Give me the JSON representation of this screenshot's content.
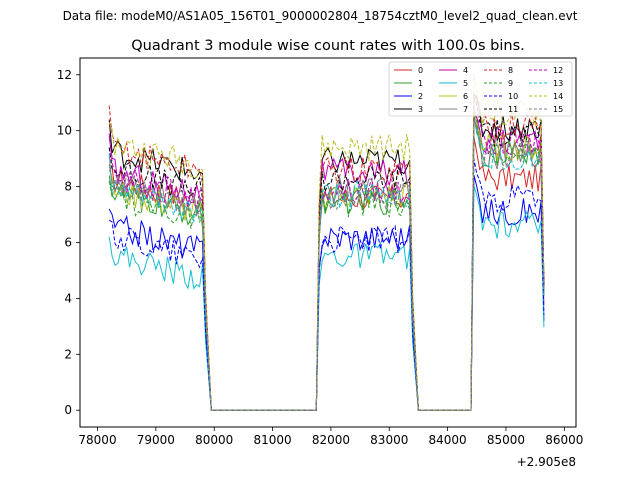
{
  "suptitle": "Data file: modeM0/AS1A05_156T01_9000002804_18754cztM0_level2_quad_clean.evt",
  "chart_data": {
    "type": "line",
    "title": "Quadrant 3 module wise count rates with 100.0s bins.",
    "xlabel": "",
    "ylabel": "",
    "x_offset_label": "+2.905e8",
    "xlim": [
      77700,
      86200
    ],
    "ylim": [
      -0.6,
      12.6
    ],
    "xticks": [
      78000,
      79000,
      80000,
      81000,
      82000,
      83000,
      84000,
      85000,
      86000
    ],
    "xtick_labels": [
      "78000",
      "79000",
      "80000",
      "81000",
      "82000",
      "83000",
      "84000",
      "85000",
      "86000"
    ],
    "yticks": [
      0,
      2,
      4,
      6,
      8,
      10,
      12
    ],
    "ytick_labels": [
      "0",
      "2",
      "4",
      "6",
      "8",
      "10",
      "12"
    ],
    "legend": {
      "placement": "top-right",
      "columns": 4
    },
    "segments": [
      {
        "start": 78200,
        "end": 79850,
        "active": true
      },
      {
        "start": 79950,
        "end": 81800,
        "active": false
      },
      {
        "start": 81800,
        "end": 83400,
        "active": true
      },
      {
        "start": 83500,
        "end": 84450,
        "active": false
      },
      {
        "start": 84450,
        "end": 85650,
        "active": true
      }
    ],
    "series": [
      {
        "name": "0",
        "color": "#d62728",
        "dash": "solid",
        "levels": [
          8.3,
          7.6,
          8.3
        ],
        "start_peak": 8.7
      },
      {
        "name": "1",
        "color": "#2ca02c",
        "dash": "solid",
        "levels": [
          7.8,
          7.5,
          9.2
        ],
        "start_peak": 8.4
      },
      {
        "name": "2",
        "color": "#0000ff",
        "dash": "solid",
        "levels": [
          6.6,
          6.2,
          7.1
        ],
        "start_peak": 7.2
      },
      {
        "name": "3",
        "color": "#000000",
        "dash": "solid",
        "levels": [
          9.3,
          8.9,
          10.1
        ],
        "start_peak": 10.4
      },
      {
        "name": "4",
        "color": "#bf00bf",
        "dash": "solid",
        "levels": [
          8.6,
          8.5,
          9.6
        ],
        "start_peak": 9.8
      },
      {
        "name": "5",
        "color": "#17becf",
        "dash": "solid",
        "levels": [
          5.6,
          5.5,
          6.6
        ],
        "start_peak": 6.2
      },
      {
        "name": "6",
        "color": "#bcbd22",
        "dash": "solid",
        "levels": [
          7.9,
          7.7,
          9.4
        ],
        "start_peak": 8.6
      },
      {
        "name": "7",
        "color": "#7f7f7f",
        "dash": "solid",
        "levels": [
          8.2,
          7.9,
          9.1
        ],
        "start_peak": 8.8
      },
      {
        "name": "8",
        "color": "#d62728",
        "dash": "dashed",
        "levels": [
          9.4,
          8.6,
          10.2
        ],
        "start_peak": 10.9
      },
      {
        "name": "9",
        "color": "#2ca02c",
        "dash": "dashed",
        "levels": [
          7.7,
          7.4,
          9.3
        ],
        "start_peak": 8.2
      },
      {
        "name": "10",
        "color": "#0000ff",
        "dash": "dashed",
        "levels": [
          6.3,
          6.1,
          7.6
        ],
        "start_peak": 6.8
      },
      {
        "name": "11",
        "color": "#000000",
        "dash": "dashed",
        "levels": [
          8.7,
          8.3,
          9.9
        ],
        "start_peak": 9.4
      },
      {
        "name": "12",
        "color": "#bf00bf",
        "dash": "dashed",
        "levels": [
          8.4,
          7.9,
          9.6
        ],
        "start_peak": 9.9
      },
      {
        "name": "13",
        "color": "#17becf",
        "dash": "dashed",
        "levels": [
          7.9,
          7.7,
          9.0
        ],
        "start_peak": 9.2
      },
      {
        "name": "14",
        "color": "#bcbd22",
        "dash": "dashed",
        "levels": [
          9.6,
          9.4,
          10.6
        ],
        "start_peak": 10.3
      },
      {
        "name": "15",
        "color": "#7f7f7f",
        "dash": "dashed",
        "levels": [
          8.1,
          7.6,
          9.1
        ],
        "start_peak": 9.1
      }
    ]
  }
}
